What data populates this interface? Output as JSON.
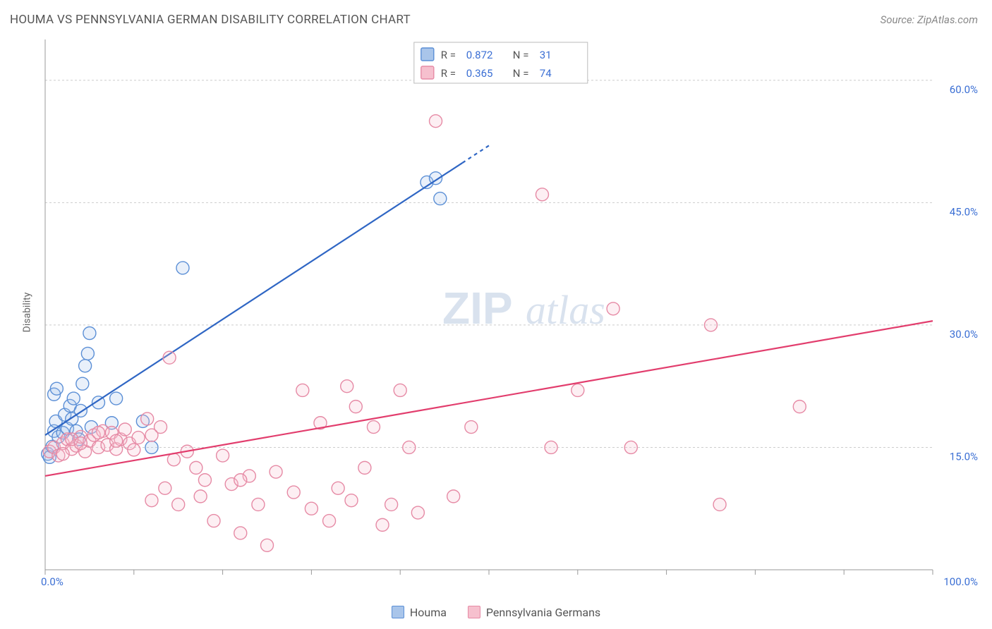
{
  "title": "HOUMA VS PENNSYLVANIA GERMAN DISABILITY CORRELATION CHART",
  "source": "Source: ZipAtlas.com",
  "ylabel": "Disability",
  "watermark": {
    "zip": "ZIP",
    "atlas": "atlas"
  },
  "chart": {
    "type": "scatter",
    "xlim": [
      0,
      100
    ],
    "ylim": [
      0,
      65
    ],
    "x_axis": {
      "label_min": "0.0%",
      "label_max": "100.0%",
      "tick_positions": [
        0,
        10,
        20,
        30,
        40,
        50,
        60,
        70,
        80,
        90,
        100
      ]
    },
    "y_axis": {
      "ticks": [
        {
          "value": 15,
          "label": "15.0%"
        },
        {
          "value": 30,
          "label": "30.0%"
        },
        {
          "value": 45,
          "label": "45.0%"
        },
        {
          "value": 60,
          "label": "60.0%"
        }
      ]
    },
    "background_color": "#ffffff",
    "grid_color": "#cccccc",
    "axis_color": "#999999",
    "tick_label_color": "#3b6fd4",
    "marker_radius": 9,
    "marker_stroke_width": 1.4,
    "marker_fill_opacity": 0.25,
    "trend_line_width": 2.2
  },
  "series": [
    {
      "name": "Houma",
      "color_stroke": "#5b8fd6",
      "color_fill": "#a9c5ea",
      "trend_color": "#2f66c4",
      "R": "0.872",
      "N": "31",
      "trend": {
        "x1": 0,
        "y1": 16.5,
        "x2": 50,
        "y2": 52,
        "dash_after_x": 47
      },
      "points": [
        [
          0.3,
          14.2
        ],
        [
          0.5,
          13.8
        ],
        [
          0.8,
          15.1
        ],
        [
          1.0,
          17.0
        ],
        [
          1.2,
          18.2
        ],
        [
          1.5,
          16.3
        ],
        [
          1.0,
          21.5
        ],
        [
          1.3,
          22.2
        ],
        [
          2.0,
          16.8
        ],
        [
          2.2,
          19.0
        ],
        [
          2.5,
          17.3
        ],
        [
          2.8,
          20.1
        ],
        [
          3.0,
          18.5
        ],
        [
          3.2,
          21.0
        ],
        [
          3.5,
          17.0
        ],
        [
          3.8,
          16.0
        ],
        [
          4.0,
          19.5
        ],
        [
          4.2,
          22.8
        ],
        [
          4.5,
          25.0
        ],
        [
          4.8,
          26.5
        ],
        [
          5.0,
          29.0
        ],
        [
          5.2,
          17.5
        ],
        [
          6.0,
          20.5
        ],
        [
          7.5,
          18.0
        ],
        [
          8.0,
          21.0
        ],
        [
          11.0,
          18.2
        ],
        [
          12.0,
          15.0
        ],
        [
          15.5,
          37.0
        ],
        [
          43.0,
          47.5
        ],
        [
          44.5,
          45.5
        ],
        [
          44.0,
          48.0
        ]
      ]
    },
    {
      "name": "Pennsylvania Germans",
      "color_stroke": "#e68aa5",
      "color_fill": "#f6c0ce",
      "trend_color": "#e23d6d",
      "R": "0.365",
      "N": "74",
      "trend": {
        "x1": 0,
        "y1": 11.5,
        "x2": 100,
        "y2": 30.5,
        "dash_after_x": 100
      },
      "points": [
        [
          0.5,
          14.5
        ],
        [
          1.0,
          15.0
        ],
        [
          1.5,
          14.0
        ],
        [
          2.0,
          15.5
        ],
        [
          2.5,
          16.0
        ],
        [
          3.0,
          14.8
        ],
        [
          3.5,
          15.2
        ],
        [
          4.0,
          16.3
        ],
        [
          4.5,
          14.5
        ],
        [
          5.0,
          15.8
        ],
        [
          5.5,
          16.5
        ],
        [
          6.0,
          15.0
        ],
        [
          6.5,
          17.0
        ],
        [
          7.0,
          15.3
        ],
        [
          7.5,
          16.8
        ],
        [
          8.0,
          14.8
        ],
        [
          8.5,
          16.0
        ],
        [
          9.0,
          17.2
        ],
        [
          9.5,
          15.5
        ],
        [
          10.0,
          14.7
        ],
        [
          10.5,
          16.2
        ],
        [
          11.5,
          18.5
        ],
        [
          12.0,
          8.5
        ],
        [
          13.0,
          17.5
        ],
        [
          14.0,
          26.0
        ],
        [
          14.5,
          13.5
        ],
        [
          15.0,
          8.0
        ],
        [
          16.0,
          14.5
        ],
        [
          17.0,
          12.5
        ],
        [
          17.5,
          9.0
        ],
        [
          18.0,
          11.0
        ],
        [
          19.0,
          6.0
        ],
        [
          20.0,
          14.0
        ],
        [
          21.0,
          10.5
        ],
        [
          22.0,
          4.5
        ],
        [
          23.0,
          11.5
        ],
        [
          24.0,
          8.0
        ],
        [
          25.0,
          3.0
        ],
        [
          26.0,
          12.0
        ],
        [
          28.0,
          9.5
        ],
        [
          29.0,
          22.0
        ],
        [
          30.0,
          7.5
        ],
        [
          31.0,
          18.0
        ],
        [
          32.0,
          6.0
        ],
        [
          33.0,
          10.0
        ],
        [
          34.0,
          22.5
        ],
        [
          34.5,
          8.5
        ],
        [
          35.0,
          20.0
        ],
        [
          36.0,
          12.5
        ],
        [
          37.0,
          17.5
        ],
        [
          38.0,
          5.5
        ],
        [
          39.0,
          8.0
        ],
        [
          40.0,
          22.0
        ],
        [
          41.0,
          15.0
        ],
        [
          42.0,
          7.0
        ],
        [
          44.0,
          55.0
        ],
        [
          46.0,
          9.0
        ],
        [
          48.0,
          17.5
        ],
        [
          56.0,
          46.0
        ],
        [
          57.0,
          15.0
        ],
        [
          60.0,
          22.0
        ],
        [
          64.0,
          32.0
        ],
        [
          66.0,
          15.0
        ],
        [
          75.0,
          30.0
        ],
        [
          76.0,
          8.0
        ],
        [
          85.0,
          20.0
        ],
        [
          2.0,
          14.2
        ],
        [
          3.0,
          16.0
        ],
        [
          4.0,
          15.5
        ],
        [
          6.0,
          16.8
        ],
        [
          8.0,
          15.8
        ],
        [
          12.0,
          16.5
        ],
        [
          13.5,
          10.0
        ],
        [
          22.0,
          11.0
        ]
      ]
    }
  ],
  "legend_bottom": [
    {
      "label": "Houma",
      "fill": "#a9c5ea",
      "stroke": "#5b8fd6"
    },
    {
      "label": "Pennsylvania Germans",
      "fill": "#f6c0ce",
      "stroke": "#e68aa5"
    }
  ],
  "stats_legend": {
    "r_label": "R =",
    "n_label": "N ="
  }
}
